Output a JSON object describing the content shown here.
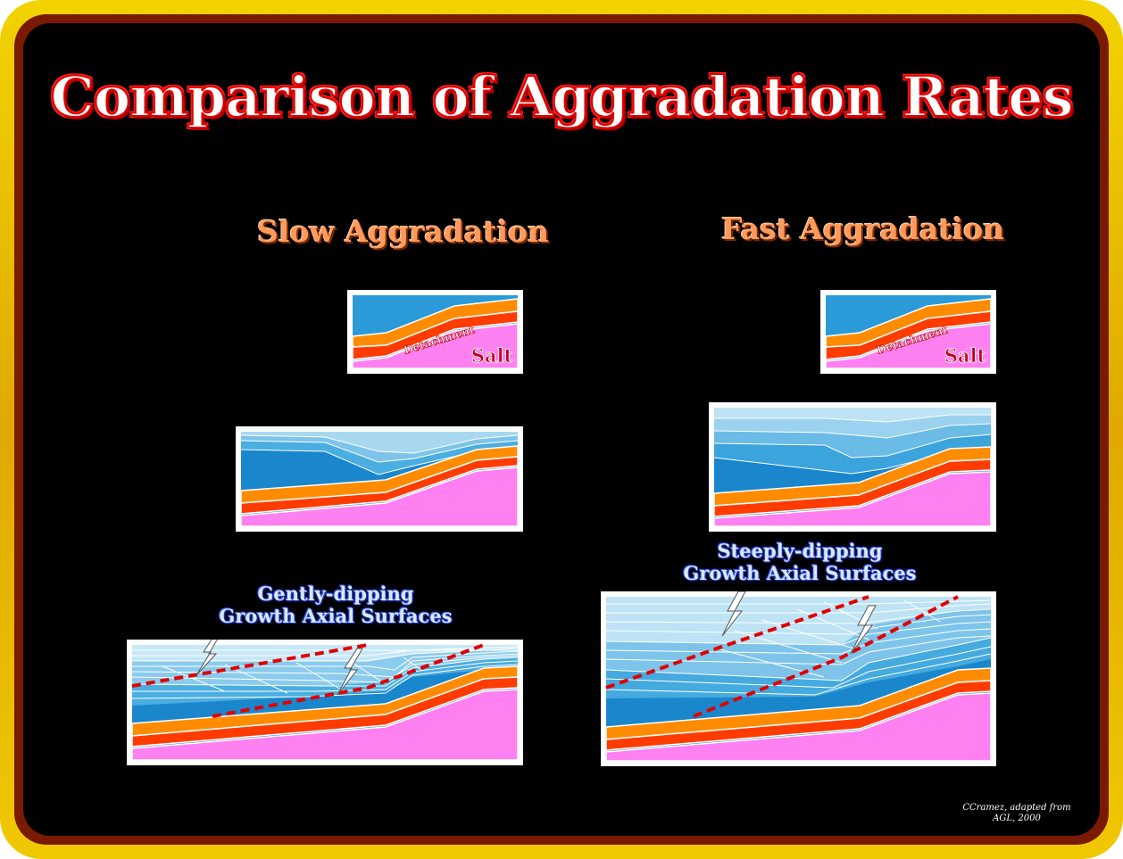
{
  "title": "Comparison of Aggradation Rates",
  "columns": {
    "slow": {
      "heading": "Slow Aggradation",
      "annotation_line1": "Gently-dipping",
      "annotation_line2": "Growth Axial Surfaces"
    },
    "fast": {
      "heading": "Fast Aggradation",
      "annotation_line1": "Steeply-dipping",
      "annotation_line2": "Growth Axial Surfaces"
    }
  },
  "initial_section_labels": {
    "detachment": "Detachment",
    "salt": "Salt"
  },
  "colors": {
    "frame_gold": "#f2d300",
    "background": "#000000",
    "title_outline": "#e00000",
    "heading": "#ff9a5c",
    "salt": "#ff80f0",
    "orange_bed": "#ff8c00",
    "red_bed": "#ff3c00",
    "pre_kinematic_blue": "#2a9ad8",
    "growth_blue_light": "#bde3f5",
    "axial_surface": "#e00000"
  },
  "credit": {
    "line1": "CCramez, adapted from",
    "line2": "AGL, 2000"
  }
}
